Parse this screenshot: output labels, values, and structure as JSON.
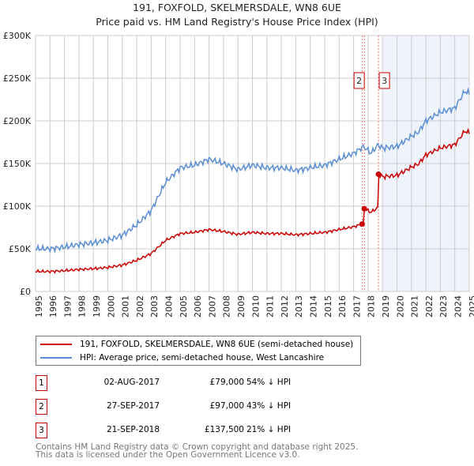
{
  "chart_data": {
    "type": "line",
    "title": "191, FOXFOLD, SKELMERSDALE, WN8 6UE",
    "subtitle": "Price paid vs. HM Land Registry's House Price Index (HPI)",
    "xlim": [
      1995,
      2025
    ],
    "ylim": [
      0,
      300000
    ],
    "yticks": [
      "£0",
      "£50K",
      "£100K",
      "£150K",
      "£200K",
      "£250K",
      "£300K"
    ],
    "xticks": [
      "1995",
      "1996",
      "1997",
      "1998",
      "1999",
      "2000",
      "2001",
      "2002",
      "2003",
      "2004",
      "2005",
      "2006",
      "2007",
      "2008",
      "2009",
      "2010",
      "2011",
      "2012",
      "2013",
      "2014",
      "2015",
      "2016",
      "2017",
      "2018",
      "2019",
      "2020",
      "2021",
      "2022",
      "2023",
      "2024",
      "2025"
    ],
    "series": [
      {
        "name": "191, FOXFOLD, SKELMERSDALE, WN8 6UE (semi-detached house)",
        "color": "#cc0000"
      },
      {
        "name": "HPI: Average price, semi-detached house, West Lancashire",
        "color": "#5b8fd4",
        "x": [
          1995,
          1996,
          1997,
          1998,
          1999,
          2000,
          2001,
          2002,
          2003,
          2004,
          2005,
          2006,
          2007,
          2008,
          2009,
          2010,
          2011,
          2012,
          2013,
          2014,
          2015,
          2016,
          2017,
          2017.7,
          2018.2,
          2018.7,
          2019,
          2020,
          2021,
          2021.5,
          2022,
          2023,
          2024,
          2024.7,
          2025
        ],
        "values": [
          50000,
          50000,
          52000,
          55000,
          57000,
          60000,
          66000,
          78000,
          95000,
          128000,
          145000,
          148000,
          155000,
          150000,
          143000,
          148000,
          145000,
          145000,
          142000,
          145000,
          148000,
          155000,
          162000,
          170000,
          162000,
          172000,
          168000,
          170000,
          182000,
          187000,
          200000,
          210000,
          215000,
          235000,
          232000
        ]
      }
    ],
    "sales": [
      {
        "label": "1",
        "date": "02-AUG-2017",
        "x": 2017.59,
        "price": 79000,
        "price_text": "£79,000",
        "hpi_text": "54% ↓ HPI"
      },
      {
        "label": "2",
        "date": "27-SEP-2017",
        "x": 2017.74,
        "price": 97000,
        "price_text": "£97,000",
        "hpi_text": "43% ↓ HPI"
      },
      {
        "label": "3",
        "date": "21-SEP-2018",
        "x": 2018.72,
        "price": 137500,
        "price_text": "£137,500",
        "hpi_text": "21% ↓ HPI"
      }
    ],
    "shaded_from": 2019
  },
  "footer": [
    "Contains HM Land Registry data © Crown copyright and database right 2025.",
    "This data is licensed under the Open Government Licence v3.0."
  ]
}
